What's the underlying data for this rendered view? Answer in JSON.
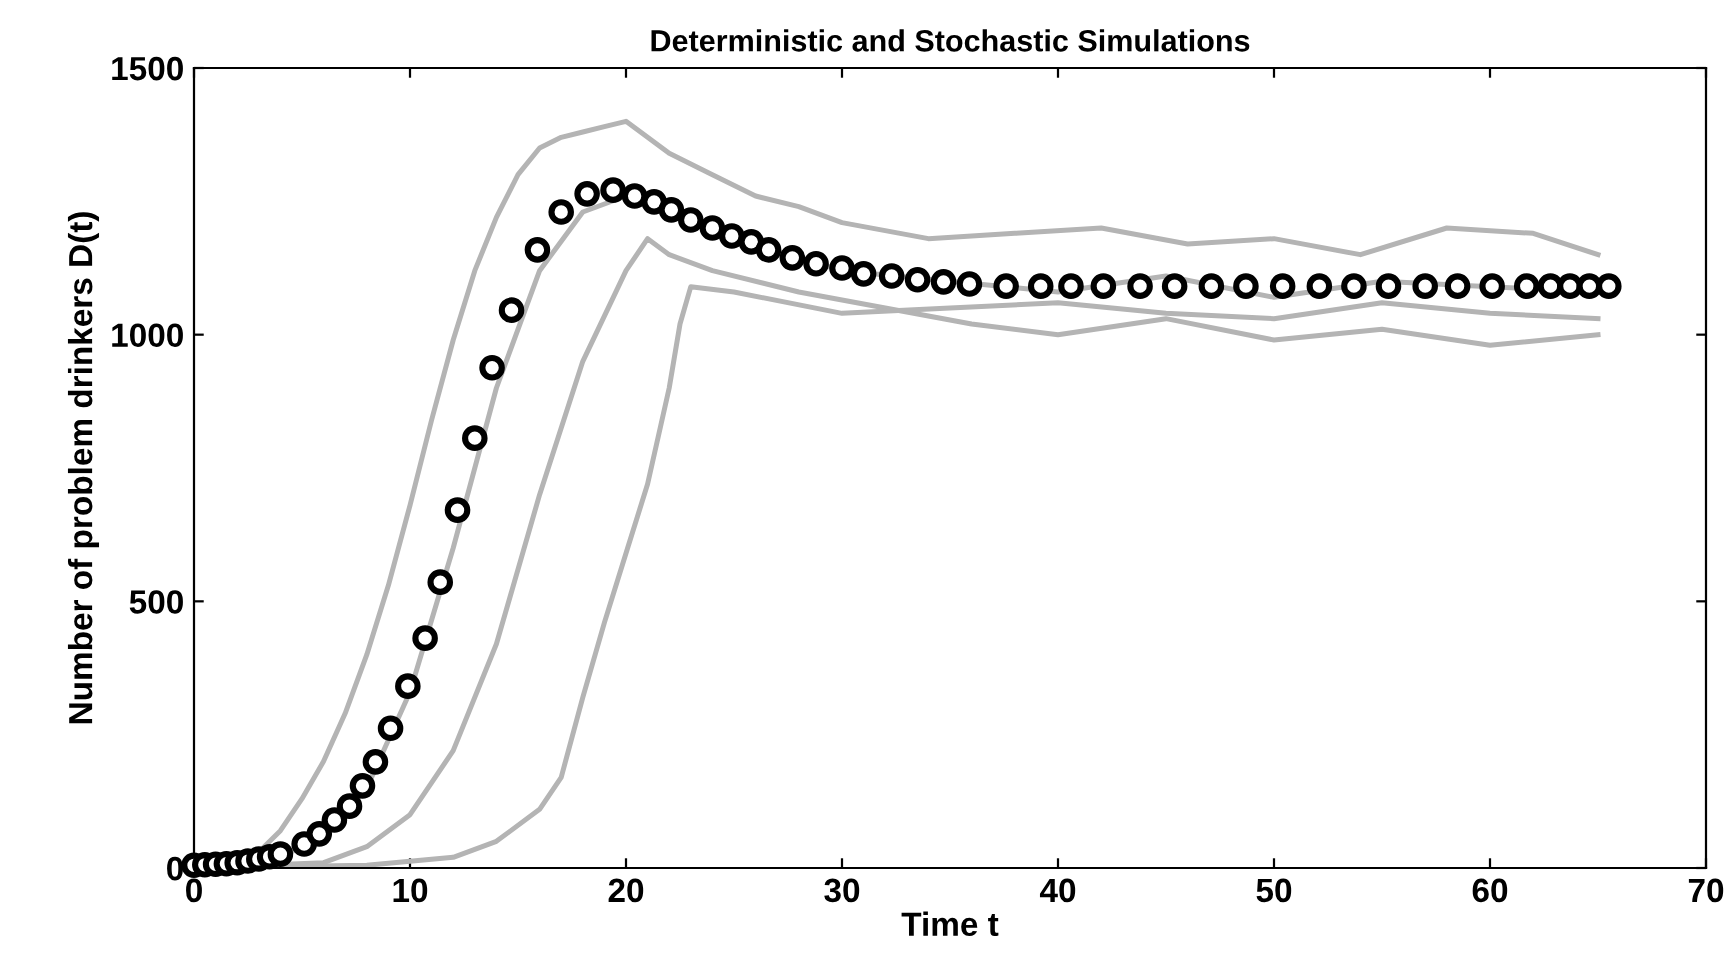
{
  "chart_data": {
    "type": "line",
    "title": "Deterministic and Stochastic Simulations",
    "xlabel": "Time t",
    "ylabel": "Number of problem drinkers D(t)",
    "xlim": [
      0,
      70
    ],
    "xticks": [
      0,
      10,
      20,
      30,
      40,
      50,
      60,
      70
    ],
    "ylim": [
      0,
      1500
    ],
    "yticks": [
      0,
      500,
      1000,
      1500
    ],
    "grid": false,
    "series": [
      {
        "color": "#b4b4b4",
        "x": [
          0,
          2,
          3,
          4,
          5,
          6,
          7,
          8,
          9,
          10,
          11,
          12,
          13,
          14,
          15,
          16,
          17,
          18,
          19,
          20,
          22,
          24,
          26,
          28,
          30,
          34,
          38,
          42,
          46,
          50,
          54,
          58,
          62,
          65
        ],
        "values": [
          0,
          10,
          30,
          70,
          130,
          200,
          290,
          400,
          530,
          680,
          840,
          990,
          1120,
          1220,
          1300,
          1350,
          1370,
          1380,
          1390,
          1400,
          1340,
          1300,
          1260,
          1240,
          1210,
          1180,
          1190,
          1200,
          1170,
          1180,
          1150,
          1200,
          1190,
          1150
        ]
      },
      {
        "color": "#b4b4b4",
        "x": [
          0,
          4,
          6,
          8,
          10,
          12,
          14,
          16,
          18,
          20,
          22,
          25,
          30,
          35,
          40,
          45,
          50,
          55,
          60,
          65
        ],
        "values": [
          0,
          20,
          60,
          150,
          330,
          600,
          900,
          1120,
          1230,
          1260,
          1230,
          1180,
          1120,
          1100,
          1080,
          1110,
          1070,
          1100,
          1090,
          1080
        ]
      },
      {
        "color": "#b4b4b4",
        "x": [
          0,
          6,
          8,
          10,
          12,
          14,
          16,
          18,
          20,
          21,
          22,
          24,
          28,
          32,
          36,
          40,
          45,
          50,
          55,
          60,
          65
        ],
        "values": [
          0,
          10,
          40,
          100,
          220,
          420,
          700,
          950,
          1120,
          1180,
          1150,
          1120,
          1080,
          1050,
          1020,
          1000,
          1030,
          990,
          1010,
          980,
          1000
        ]
      },
      {
        "color": "#b4b4b4",
        "x": [
          0,
          8,
          12,
          14,
          16,
          17,
          18,
          19,
          20,
          21,
          22,
          22.5,
          23,
          25,
          30,
          35,
          40,
          45,
          50,
          55,
          60,
          65
        ],
        "values": [
          0,
          5,
          20,
          50,
          110,
          170,
          320,
          460,
          590,
          720,
          900,
          1020,
          1090,
          1080,
          1040,
          1050,
          1060,
          1040,
          1030,
          1060,
          1040,
          1030
        ]
      },
      {
        "type": "scatter",
        "color": "#000000",
        "marker": "circle",
        "x": [
          0,
          0.5,
          1,
          1.5,
          2,
          2.5,
          3,
          3.5,
          4.0,
          5.1,
          5.8,
          6.5,
          7.2,
          7.8,
          8.4,
          9.1,
          9.9,
          10.7,
          11.4,
          12.2,
          13.0,
          13.8,
          14.7,
          15.9,
          17.0,
          18.2,
          19.4,
          20.4,
          21.3,
          22.1,
          23.0,
          24.0,
          24.9,
          25.8,
          26.6,
          27.7,
          28.8,
          30.0,
          31.0,
          32.3,
          33.5,
          34.7,
          35.9,
          37.6,
          39.2,
          40.6,
          42.1,
          43.8,
          45.4,
          47.1,
          48.7,
          50.4,
          52.1,
          53.7,
          55.3,
          57.0,
          58.5,
          60.1,
          61.7,
          62.8,
          63.7,
          64.6,
          65.5
        ],
        "values": [
          5,
          6,
          7,
          8,
          10,
          13,
          17,
          21,
          26,
          45,
          64,
          90,
          116,
          154,
          199,
          262,
          341,
          431,
          536,
          671,
          806,
          938,
          1046,
          1159,
          1230,
          1264,
          1271,
          1260,
          1249,
          1234,
          1215,
          1200,
          1185,
          1174,
          1159,
          1144,
          1133,
          1125,
          1114,
          1110,
          1103,
          1099,
          1095,
          1091,
          1091,
          1091,
          1091,
          1091,
          1091,
          1091,
          1091,
          1091,
          1091,
          1091,
          1091,
          1091,
          1091,
          1091,
          1091,
          1091,
          1091,
          1091,
          1091
        ]
      }
    ]
  }
}
